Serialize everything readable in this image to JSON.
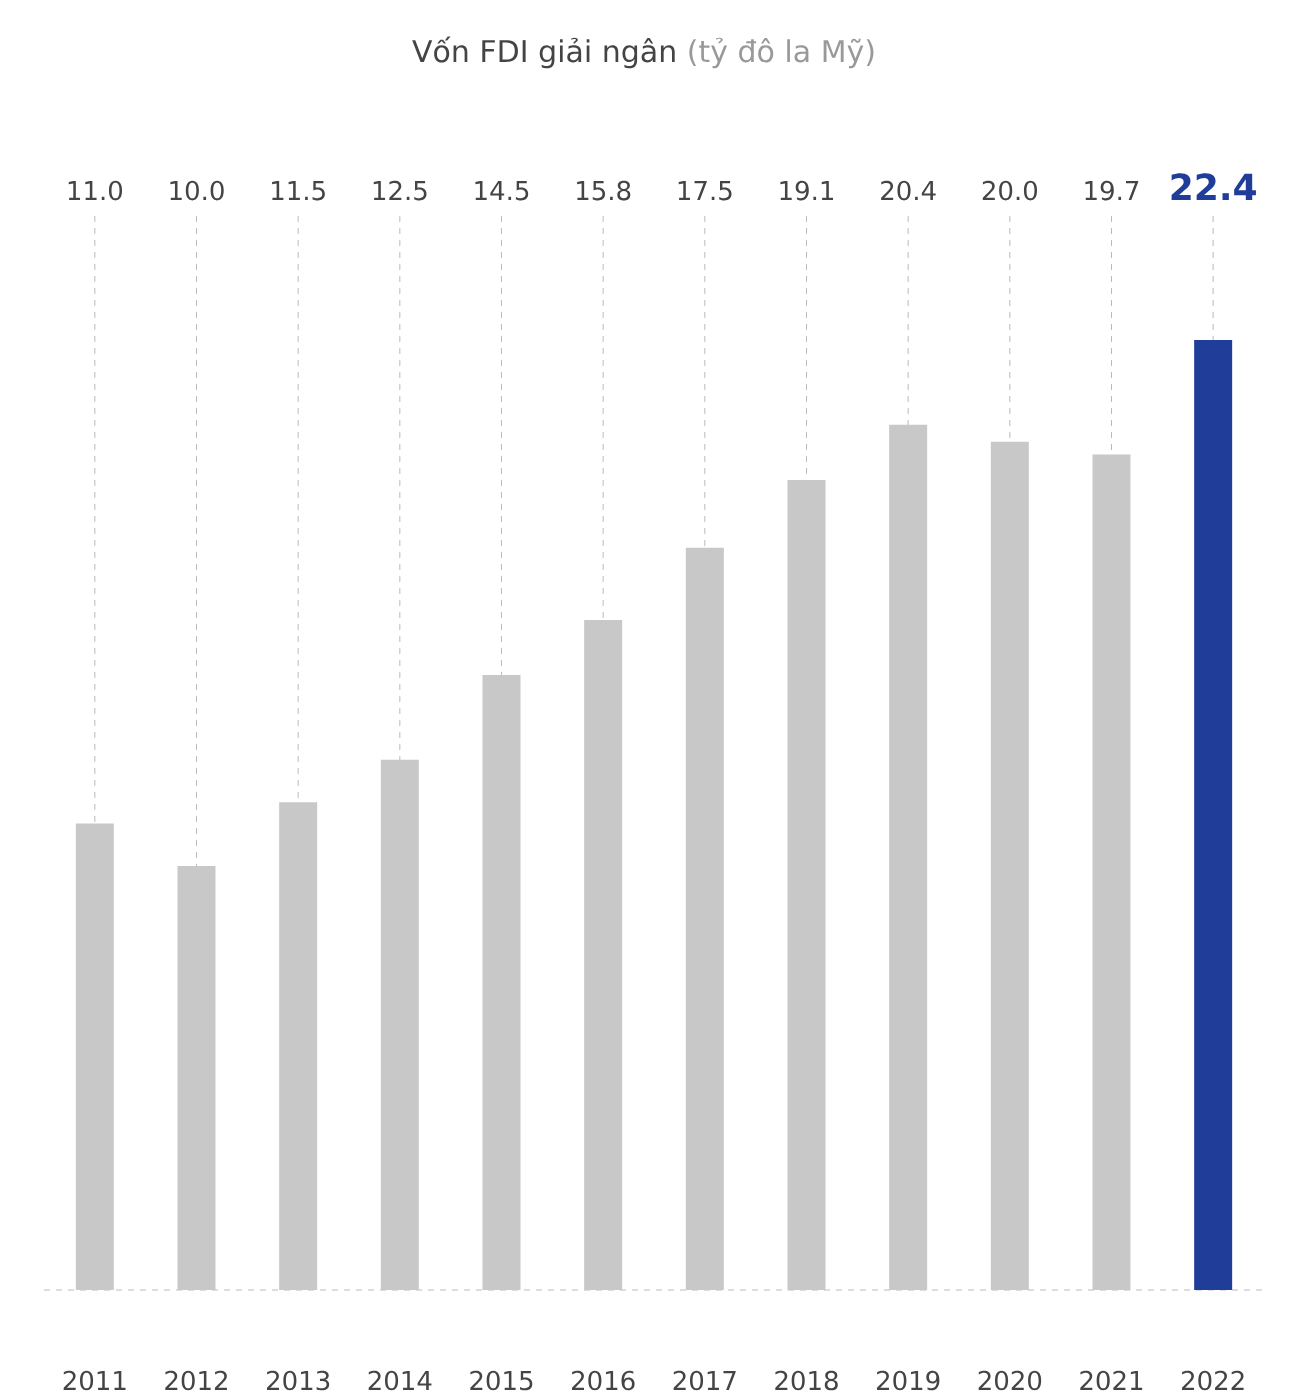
{
  "chart_data": {
    "type": "bar",
    "title": "Vốn FDI giải ngân",
    "subtitle": "(tỷ đô la Mỹ)",
    "categories": [
      "2011",
      "2012",
      "2013",
      "2014",
      "2015",
      "2016",
      "2017",
      "2018",
      "2019",
      "2020",
      "2021",
      "2022"
    ],
    "values": [
      11.0,
      10.0,
      11.5,
      12.5,
      14.5,
      15.8,
      17.5,
      19.1,
      20.4,
      20.0,
      19.7,
      22.4
    ],
    "colors": [
      "#c8c8c8",
      "#c8c8c8",
      "#c8c8c8",
      "#c8c8c8",
      "#c8c8c8",
      "#c8c8c8",
      "#c8c8c8",
      "#c8c8c8",
      "#c8c8c8",
      "#c8c8c8",
      "#c8c8c8",
      "#1f3d99"
    ],
    "value_labels": [
      "11.0",
      "10.0",
      "11.5",
      "12.5",
      "14.5",
      "15.8",
      "17.5",
      "19.1",
      "20.4",
      "20.0",
      "19.7",
      "22.4"
    ],
    "grid": "x"
  }
}
